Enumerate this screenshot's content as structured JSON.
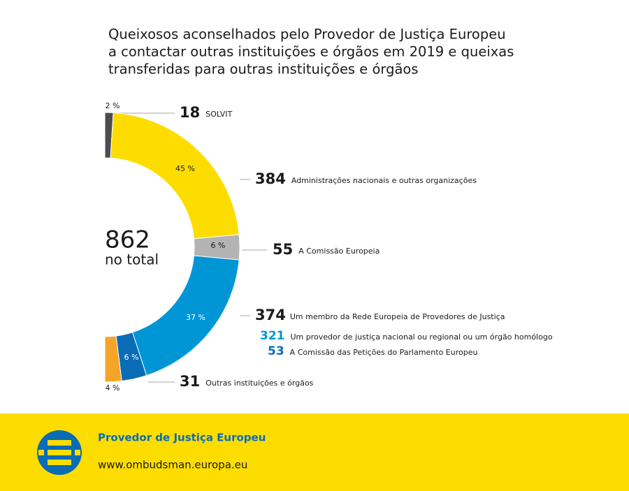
{
  "chart_data": {
    "type": "half-donut",
    "title_lines": [
      "Queixosos aconselhados pelo Provedor de Justiça Europeu",
      "a contactar outras instituições e órgãos em 2019 e queixas",
      "transferidas para outras instituições e órgãos"
    ],
    "total": 862,
    "total_label": "no total",
    "series": [
      {
        "name": "SOLVIT",
        "value": 18,
        "percent": 2,
        "percent_label": "2 %",
        "color": "#4d4d4d"
      },
      {
        "name": "Administrações nacionais e outras organizações",
        "value": 384,
        "percent": 45,
        "percent_label": "45 %",
        "color": "#fddd00"
      },
      {
        "name": "A Comissão Europeia",
        "value": 55,
        "percent": 6,
        "percent_label": "6 %",
        "color": "#b3b3b3"
      },
      {
        "name": "Um provedor de justiça nacional ou regional ou um órgão homólogo",
        "value": 321,
        "percent": 37,
        "percent_label": "37 %",
        "color": "#0096d6"
      },
      {
        "name": "A Comissão das Petições do Parlamento Europeu",
        "value": 53,
        "percent": 6,
        "percent_label": "6 %",
        "color": "#0a6cb5"
      },
      {
        "name": "Outras instituições e órgãos",
        "value": 31,
        "percent": 4,
        "percent_label": "4 %",
        "color": "#f5a42a"
      }
    ],
    "group": {
      "name": "Um membro da Rede Europeia de Provedores de Justiça",
      "value": 374
    }
  },
  "footer": {
    "organization": "Provedor de Justiça Europeu",
    "url": "www.ombudsman.europa.eu"
  }
}
